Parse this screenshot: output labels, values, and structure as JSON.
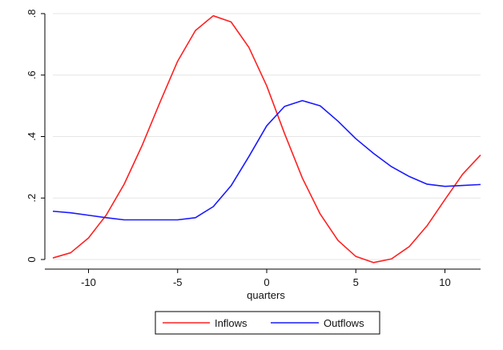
{
  "chart_data": {
    "type": "line",
    "title": "",
    "xlabel": "quarters",
    "ylabel": "",
    "x": [
      -12,
      -11,
      -10,
      -9,
      -8,
      -7,
      -6,
      -5,
      -4,
      -3,
      -2,
      -1,
      0,
      1,
      2,
      3,
      4,
      5,
      6,
      7,
      8,
      9,
      10,
      11,
      12
    ],
    "xlim": [
      -12,
      12
    ],
    "ylim": [
      0,
      0.8
    ],
    "xticks": [
      -10,
      -5,
      0,
      5,
      10
    ],
    "xtick_labels": [
      "-10",
      "-5",
      "0",
      "5",
      "10"
    ],
    "yticks": [
      0,
      0.2,
      0.4,
      0.6,
      0.8
    ],
    "ytick_labels": [
      "0",
      ".2",
      ".4",
      ".6",
      ".8"
    ],
    "grid": true,
    "legend_position": "bottom",
    "series": [
      {
        "name": "Inflows",
        "color": "#ff2020",
        "values": [
          0.005,
          0.022,
          0.07,
          0.145,
          0.245,
          0.37,
          0.51,
          0.645,
          0.745,
          0.793,
          0.773,
          0.69,
          0.565,
          0.41,
          0.265,
          0.148,
          0.062,
          0.01,
          -0.01,
          0.002,
          0.042,
          0.11,
          0.195,
          0.278,
          0.34
        ]
      },
      {
        "name": "Outflows",
        "color": "#1a1aff",
        "values": [
          0.157,
          0.152,
          0.144,
          0.136,
          0.129,
          0.129,
          0.129,
          0.129,
          0.136,
          0.172,
          0.24,
          0.335,
          0.435,
          0.498,
          0.517,
          0.5,
          0.45,
          0.393,
          0.345,
          0.302,
          0.27,
          0.245,
          0.238,
          0.241,
          0.244
        ]
      }
    ]
  }
}
